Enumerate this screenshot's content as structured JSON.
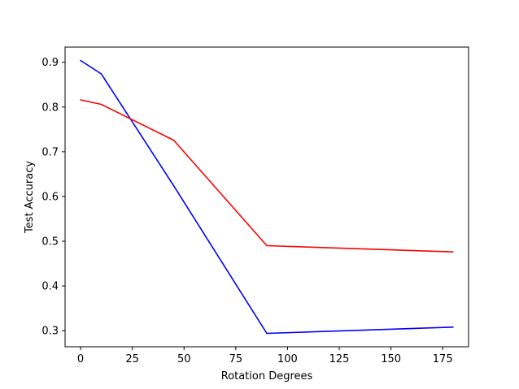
{
  "chart_data": {
    "type": "line",
    "title": "",
    "xlabel": "Rotation Degrees",
    "ylabel": "Test Accuracy",
    "xlim": [
      -7.5,
      187.5
    ],
    "ylim": [
      0.264,
      0.934
    ],
    "xticks": [
      0,
      25,
      50,
      75,
      100,
      125,
      150,
      175
    ],
    "yticks": [
      0.3,
      0.4,
      0.5,
      0.6,
      0.7,
      0.8,
      0.9
    ],
    "grid": false,
    "legend": "none",
    "series": [
      {
        "color": "#0000ff",
        "x": [
          0,
          10,
          45,
          90,
          180
        ],
        "y": [
          0.904,
          0.874,
          0.624,
          0.294,
          0.308
        ]
      },
      {
        "color": "#ff0000",
        "x": [
          0,
          10,
          45,
          90,
          180
        ],
        "y": [
          0.816,
          0.806,
          0.726,
          0.49,
          0.476
        ]
      }
    ]
  }
}
